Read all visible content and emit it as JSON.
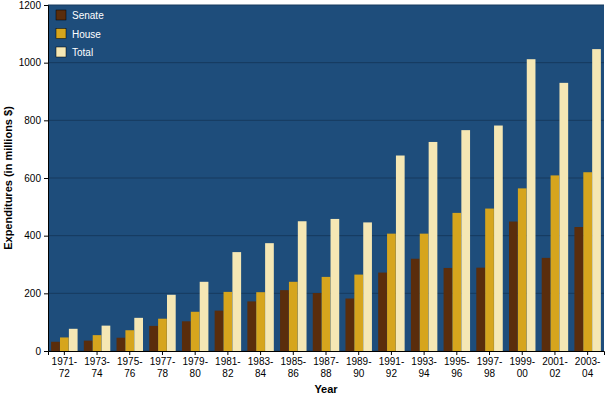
{
  "chart_data": {
    "type": "bar",
    "x_label": "Year",
    "y_label": "Expenditures (in millions $)",
    "categories": [
      "1971-72",
      "1973-74",
      "1975-76",
      "1977-78",
      "1979-80",
      "1981-82",
      "1983-84",
      "1985-86",
      "1987-88",
      "1989-90",
      "1991-92",
      "1993-94",
      "1995-96",
      "1997-98",
      "1999-00",
      "2001-02",
      "2003-04"
    ],
    "series": [
      {
        "name": "Senate",
        "color": "#5a2d0c",
        "values": [
          32,
          36,
          46,
          87,
          103,
          140,
          172,
          211,
          201,
          182,
          272,
          320,
          288,
          289,
          449,
          323,
          430
        ]
      },
      {
        "name": "House",
        "color": "#d6a51d",
        "values": [
          47,
          55,
          72,
          112,
          136,
          205,
          204,
          240,
          257,
          265,
          407,
          407,
          479,
          494,
          564,
          609,
          620
        ]
      },
      {
        "name": "Total",
        "color": "#f5e7b4",
        "values": [
          77,
          88,
          115,
          195,
          240,
          343,
          374,
          450,
          458,
          446,
          678,
          725,
          766,
          782,
          1012,
          930,
          1047
        ]
      }
    ],
    "ylim": [
      0,
      1200
    ],
    "yticks": [
      0,
      200,
      400,
      600,
      800,
      1000,
      1200
    ],
    "grid": true,
    "legend": "upper left"
  }
}
